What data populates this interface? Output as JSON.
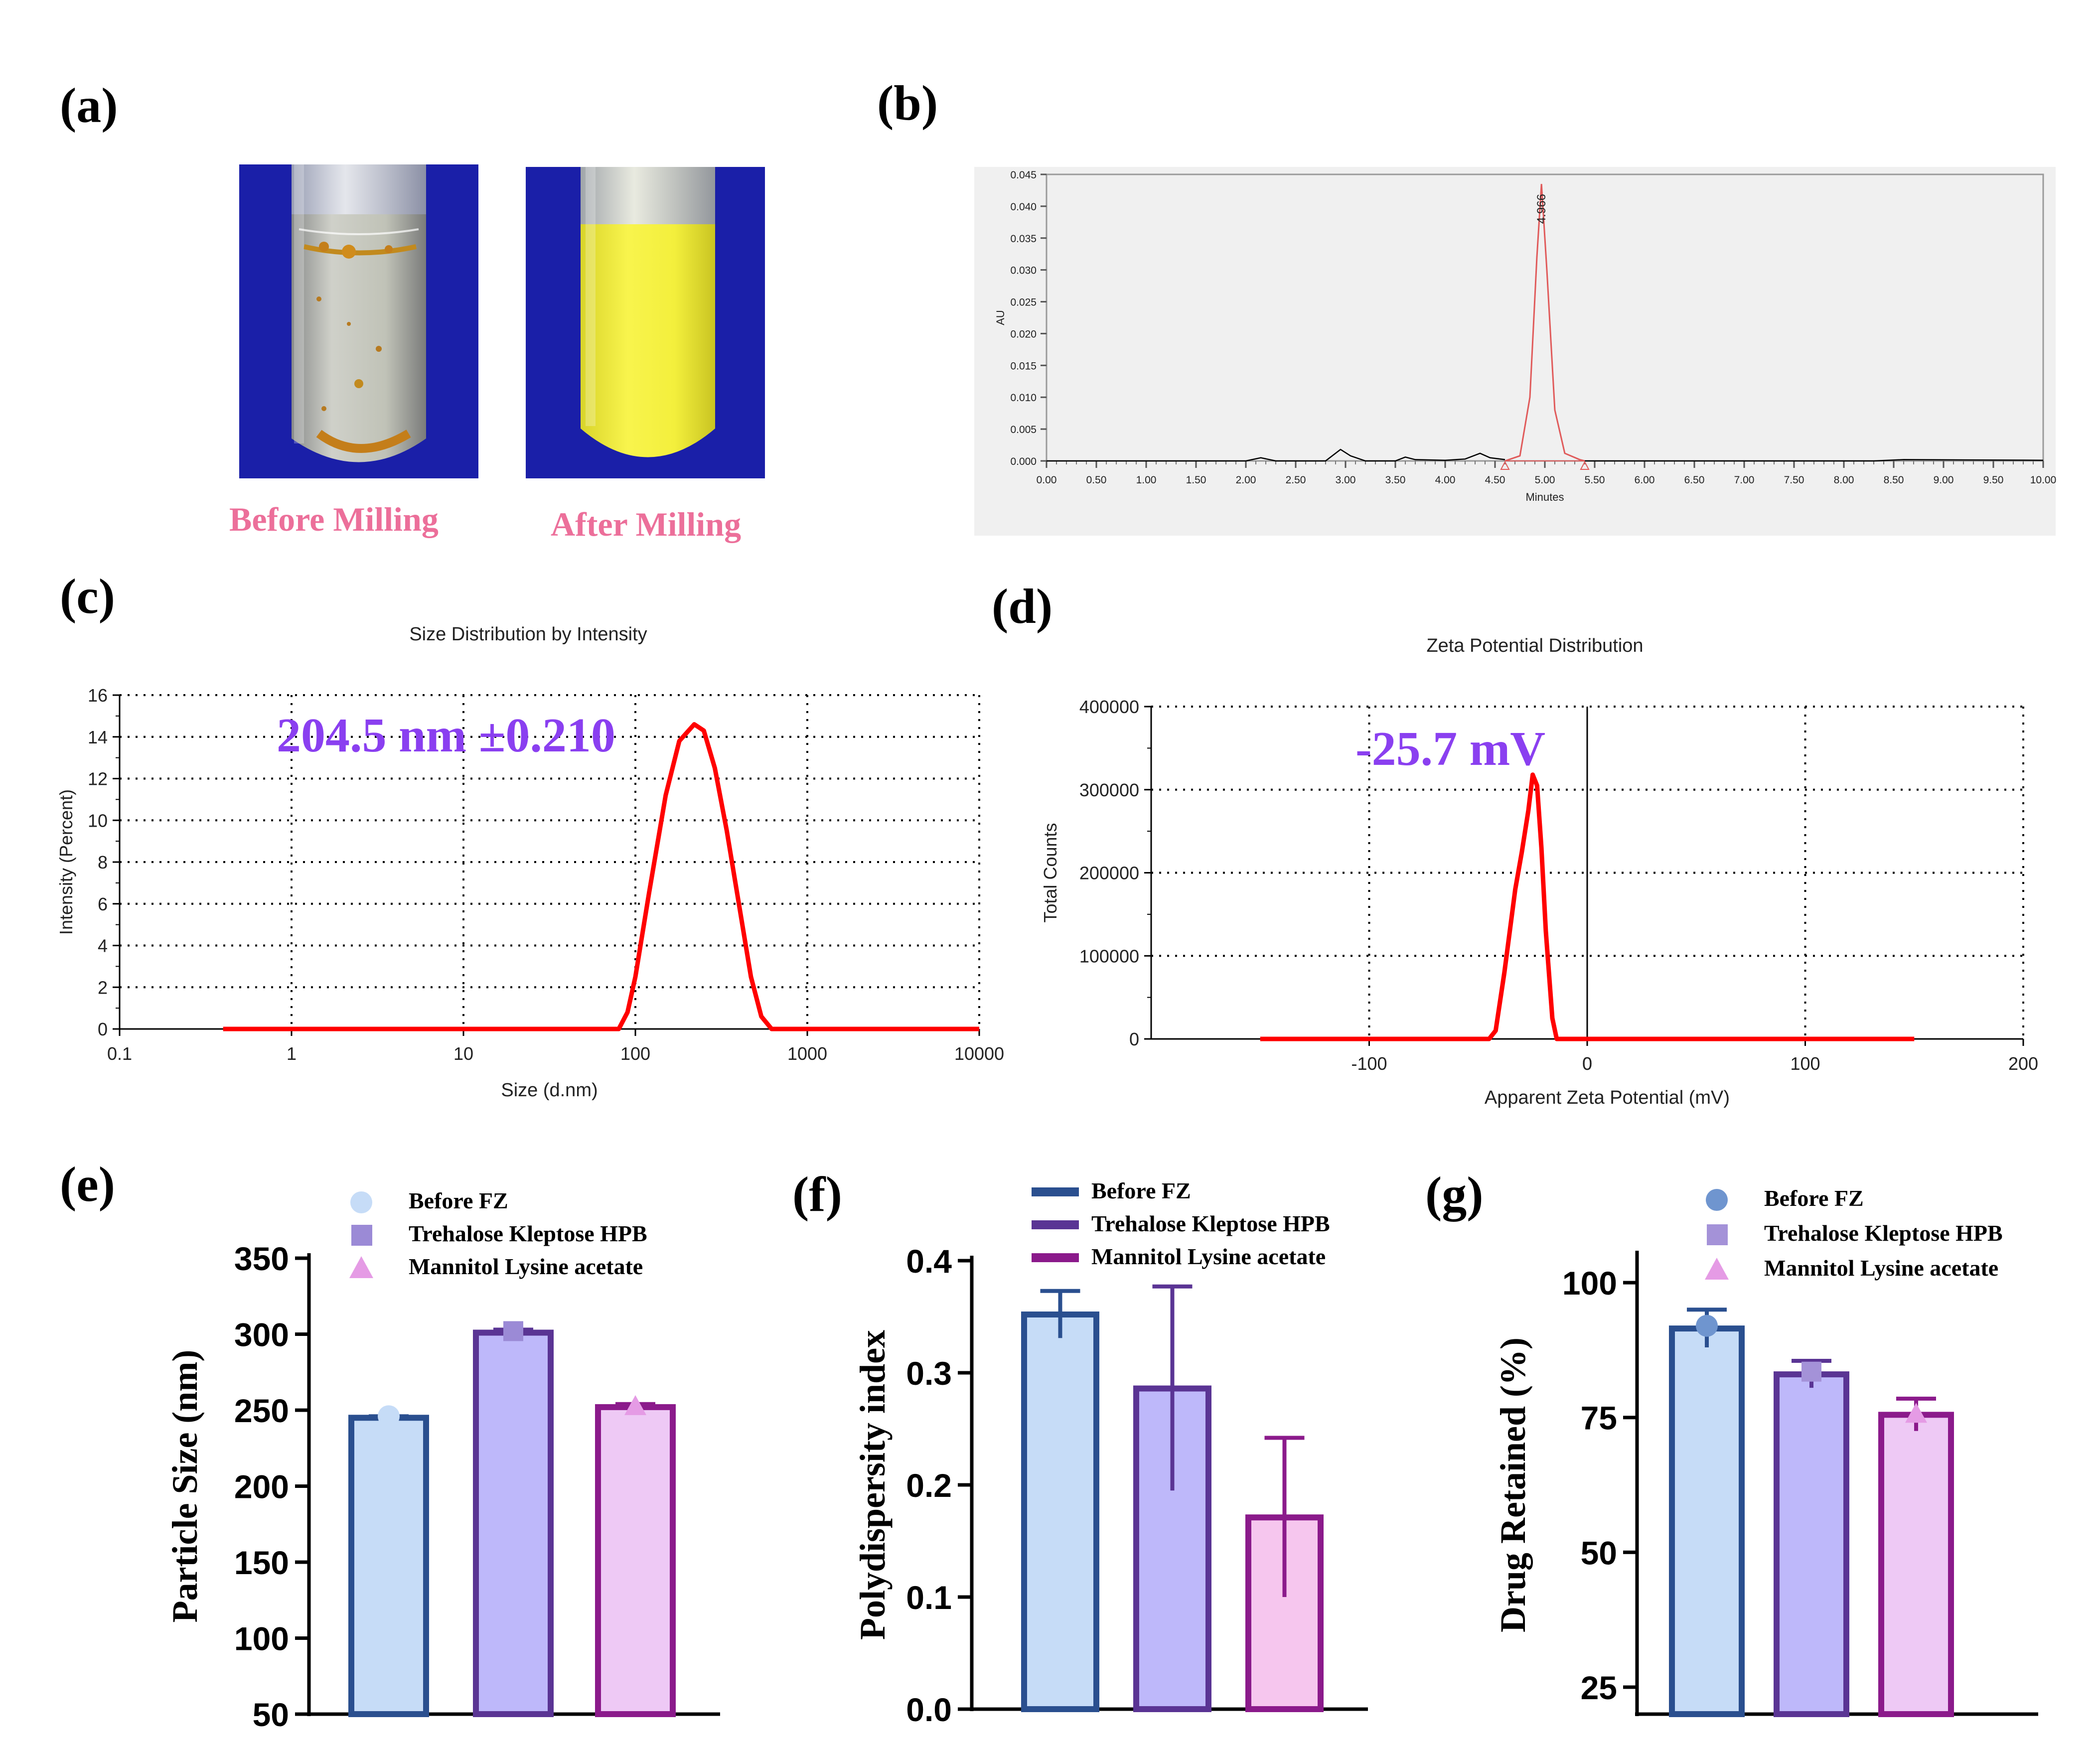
{
  "panels": {
    "a": {
      "label": "(a)",
      "photos": [
        {
          "caption": "Before Milling"
        },
        {
          "caption": "After Milling"
        }
      ],
      "colors": {
        "background": "#1a1fa8",
        "liquid_before": "#d8d8c0",
        "liquid_after": "#f2ee3a",
        "caption": "#ec6f9a"
      }
    },
    "b": {
      "label": "(b)",
      "chart_data": {
        "type": "line",
        "title": "",
        "xlabel": "Minutes",
        "ylabel": "AU",
        "xlim": [
          0,
          10
        ],
        "ylim": [
          0,
          0.045
        ],
        "xticks": [
          "0.00",
          "0.50",
          "1.00",
          "1.50",
          "2.00",
          "2.50",
          "3.00",
          "3.50",
          "4.00",
          "4.50",
          "5.00",
          "5.50",
          "6.00",
          "6.50",
          "7.00",
          "7.50",
          "8.00",
          "8.50",
          "9.00",
          "9.50",
          "10.00"
        ],
        "yticks": [
          "0.000",
          "0.005",
          "0.010",
          "0.015",
          "0.020",
          "0.025",
          "0.030",
          "0.035",
          "0.040",
          "0.045"
        ],
        "peak_label": "4.966",
        "peak": {
          "x": 4.966,
          "y": 0.0435
        },
        "baseline_series": {
          "x": [
            0,
            2.0,
            2.15,
            2.3,
            2.8,
            2.95,
            3.05,
            3.2,
            3.5,
            3.6,
            3.7,
            4.0,
            4.2,
            4.35,
            4.45,
            4.6
          ],
          "y": [
            0,
            0,
            0.0005,
            0,
            0,
            0.0018,
            0.0008,
            0,
            0,
            0.0006,
            0.0002,
            0.0001,
            0.0003,
            0.0012,
            0.0005,
            0.0002
          ]
        },
        "peak_series": {
          "x": [
            4.6,
            4.75,
            4.85,
            4.92,
            4.966,
            5.02,
            5.1,
            5.2,
            5.35,
            5.4
          ],
          "y": [
            0,
            0.0008,
            0.01,
            0.032,
            0.0435,
            0.03,
            0.008,
            0.0012,
            0.0002,
            0
          ]
        },
        "tail_series": {
          "x": [
            5.4,
            6.0,
            8.3,
            8.6,
            10.0
          ],
          "y": [
            0,
            0,
            0,
            0.0002,
            0.0001
          ]
        },
        "integration_marks_x": [
          4.6,
          5.4
        ],
        "grid": false,
        "colors": {
          "baseline": "#000000",
          "peak": "#e05a5a",
          "background": "#f0f0f0"
        }
      }
    },
    "c": {
      "label": "(c)",
      "chart_data": {
        "type": "line",
        "title": "Size Distribution by Intensity",
        "xlabel": "Size (d.nm)",
        "ylabel": "Intensity (Percent)",
        "xscale": "log",
        "xlim": [
          0.1,
          10000
        ],
        "ylim": [
          0,
          16
        ],
        "xticks": [
          "0.1",
          "1",
          "10",
          "100",
          "1000",
          "10000"
        ],
        "yticks": [
          "0",
          "2",
          "4",
          "6",
          "8",
          "10",
          "12",
          "14",
          "16"
        ],
        "annotation": "204.5 nm ±0.210",
        "series": [
          {
            "x": [
              0.4,
              80,
              90,
              100,
              120,
              150,
              180,
              220,
              250,
              290,
              340,
              400,
              470,
              540,
              620,
              10000
            ],
            "y": [
              0,
              0,
              0.8,
              2.5,
              6.5,
              11.2,
              13.8,
              14.6,
              14.3,
              12.5,
              9.5,
              6.0,
              2.5,
              0.6,
              0,
              0
            ]
          }
        ],
        "grid": true,
        "colors": {
          "line": "#ff0000",
          "annotation": "#8a3ff0"
        }
      }
    },
    "d": {
      "label": "(d)",
      "chart_data": {
        "type": "line",
        "title": "Zeta Potential Distribution",
        "xlabel": "Apparent Zeta Potential (mV)",
        "ylabel": "Total Counts",
        "xlim": [
          -200,
          200
        ],
        "ylim": [
          0,
          400000
        ],
        "xticks": [
          "-100",
          "0",
          "100",
          "200"
        ],
        "yticks": [
          "0",
          "100000",
          "200000",
          "300000",
          "400000"
        ],
        "annotation": "-25.7 mV",
        "series": [
          {
            "x": [
              -150,
              -45,
              -42,
              -38,
              -33,
              -30,
              -27,
              -25,
              -23,
              -21,
              -19,
              -16,
              -14,
              -12,
              150
            ],
            "y": [
              0,
              0,
              10000,
              80000,
              180000,
              225000,
              275000,
              318000,
              305000,
              230000,
              130000,
              25000,
              0,
              0,
              0
            ]
          }
        ],
        "grid": true,
        "colors": {
          "line": "#ff0000",
          "annotation": "#8a3ff0"
        }
      }
    },
    "e": {
      "label": "(e)",
      "chart_data": {
        "type": "bar",
        "categories": [
          "Before FZ",
          "Trehalose Kleptose HPB",
          "Mannitol Lysine acetate"
        ],
        "values": [
          245,
          301,
          252
        ],
        "errors": [
          1,
          2,
          2
        ],
        "points": [
          246,
          302,
          252
        ],
        "ylabel": "Particle Size (nm)",
        "ylim": [
          50,
          350
        ],
        "yticks": [
          "50",
          "100",
          "150",
          "200",
          "250",
          "300",
          "350"
        ],
        "legend": [
          "Before FZ",
          "Trehalose Kleptose HPB",
          "Mannitol Lysine acetate"
        ],
        "legend_position": "top",
        "colors": {
          "fills": [
            "#c6dcf7",
            "#beb8fa",
            "#eec9f5"
          ],
          "edges": [
            "#2a4f8f",
            "#5a3494",
            "#8b1a8b"
          ],
          "markers": [
            "#c6dcf7",
            "#9b8ad6",
            "#e59be5"
          ]
        }
      }
    },
    "f": {
      "label": "(f)",
      "chart_data": {
        "type": "bar",
        "categories": [
          "Before FZ",
          "Trehalose Kleptose HPB",
          "Mannitol Lysine acetate"
        ],
        "values": [
          0.352,
          0.286,
          0.171
        ],
        "errors": [
          0.021,
          0.091,
          0.071
        ],
        "ylabel": "Polydispersity index",
        "ylim": [
          0,
          0.4
        ],
        "yticks": [
          "0.0",
          "0.1",
          "0.2",
          "0.3",
          "0.4"
        ],
        "legend": [
          "Before FZ",
          "Trehalose Kleptose HPB",
          "Mannitol Lysine acetate"
        ],
        "legend_position": "top",
        "colors": {
          "fills": [
            "#c6dcf7",
            "#beb8fa",
            "#f6c6ee"
          ],
          "edges": [
            "#2a4f8f",
            "#5a3494",
            "#8b1a8b"
          ]
        }
      }
    },
    "g": {
      "label": "(g)",
      "chart_data": {
        "type": "bar",
        "categories": [
          "Before FZ",
          "Trehalose Kleptose HPB",
          "Mannitol Lysine acetate"
        ],
        "values": [
          91.5,
          83,
          75.5
        ],
        "errors": [
          3.5,
          2.5,
          3
        ],
        "points": [
          92,
          83.5,
          75.5
        ],
        "ylabel": "Drug Retained (%)",
        "ylim": [
          20,
          105
        ],
        "yticks": [
          "25",
          "50",
          "75",
          "100"
        ],
        "legend": [
          "Before FZ",
          "Trehalose Kleptose HPB",
          "Mannitol Lysine acetate"
        ],
        "legend_position": "top",
        "colors": {
          "fills": [
            "#c6dcf7",
            "#beb8fa",
            "#eec9f5"
          ],
          "edges": [
            "#2a4f8f",
            "#5a3494",
            "#8b1a8b"
          ],
          "markers": [
            "#6f95cf",
            "#a492d8",
            "#e59be5"
          ]
        }
      }
    }
  }
}
